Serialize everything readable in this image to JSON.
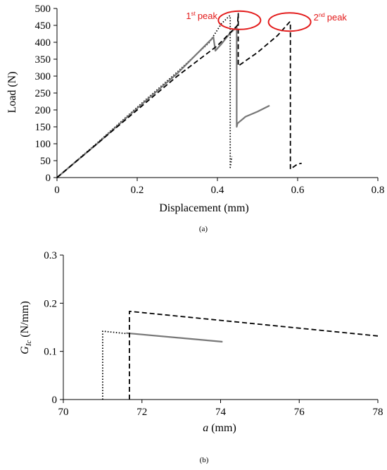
{
  "chart_data": [
    {
      "panel_label": "(a)",
      "type": "line",
      "xlabel": "Displacement (mm)",
      "ylabel": "Load (N)",
      "xlim": [
        0,
        0.8
      ],
      "ylim": [
        0,
        500
      ],
      "xticks": [
        "0",
        "0.2",
        "0.4",
        "0.6",
        "0.8"
      ],
      "yticks": [
        "0",
        "50",
        "100",
        "150",
        "200",
        "250",
        "300",
        "350",
        "400",
        "450",
        "500"
      ],
      "grid": false,
      "legend": "none",
      "annotations": [
        {
          "base": "1",
          "sup": "st",
          "text": "peak",
          "at": [
            0.455,
            465
          ]
        },
        {
          "base": "2",
          "sup": "nd",
          "text": "peak",
          "at": [
            0.58,
            460
          ]
        }
      ],
      "annotation_color": "#e31b1b",
      "series": [
        {
          "style": "dotted",
          "color": "#000000",
          "x": [
            0,
            0.1,
            0.2,
            0.3,
            0.38,
            0.41,
            0.43,
            0.432,
            0.432,
            0.436
          ],
          "y": [
            0,
            102,
            208,
            312,
            400,
            455,
            478,
            478,
            30,
            62
          ]
        },
        {
          "style": "solid",
          "color": "#777777",
          "x": [
            0,
            0.1,
            0.2,
            0.3,
            0.39,
            0.395,
            0.41,
            0.43,
            0.448,
            0.448,
            0.45,
            0.47,
            0.5,
            0.53
          ],
          "y": [
            0,
            100,
            205,
            308,
            415,
            375,
            395,
            425,
            445,
            150,
            160,
            180,
            195,
            213
          ]
        },
        {
          "style": "dashed",
          "color": "#000000",
          "x": [
            0,
            0.1,
            0.2,
            0.3,
            0.4,
            0.45,
            0.452,
            0.452,
            0.5,
            0.55,
            0.58,
            0.582,
            0.582,
            0.6,
            0.61
          ],
          "y": [
            0,
            100,
            200,
            300,
            390,
            450,
            485,
            330,
            370,
            420,
            460,
            460,
            25,
            40,
            42
          ]
        }
      ]
    },
    {
      "panel_label": "(b)",
      "type": "line",
      "xlabel_italic": "a",
      "xlabel_rest": " (mm)",
      "ylabel_main": "G",
      "ylabel_sub": "Ic",
      "ylabel_rest": " (N/mm)",
      "xlim": [
        70,
        78
      ],
      "ylim": [
        0,
        0.3
      ],
      "xticks": [
        "70",
        "72",
        "74",
        "76",
        "78"
      ],
      "yticks": [
        "0",
        "0.1",
        "0.2",
        "0.3"
      ],
      "grid": false,
      "legend": "none",
      "series": [
        {
          "style": "dotted",
          "color": "#000000",
          "x": [
            71.0,
            71.0,
            71.6
          ],
          "y": [
            0,
            0.142,
            0.137
          ]
        },
        {
          "style": "solid",
          "color": "#777777",
          "x": [
            71.6,
            74.05
          ],
          "y": [
            0.138,
            0.12
          ]
        },
        {
          "style": "dashed",
          "color": "#000000",
          "x": [
            71.68,
            71.68,
            71.7,
            78.0
          ],
          "y": [
            0,
            0.183,
            0.183,
            0.132
          ]
        }
      ]
    }
  ]
}
